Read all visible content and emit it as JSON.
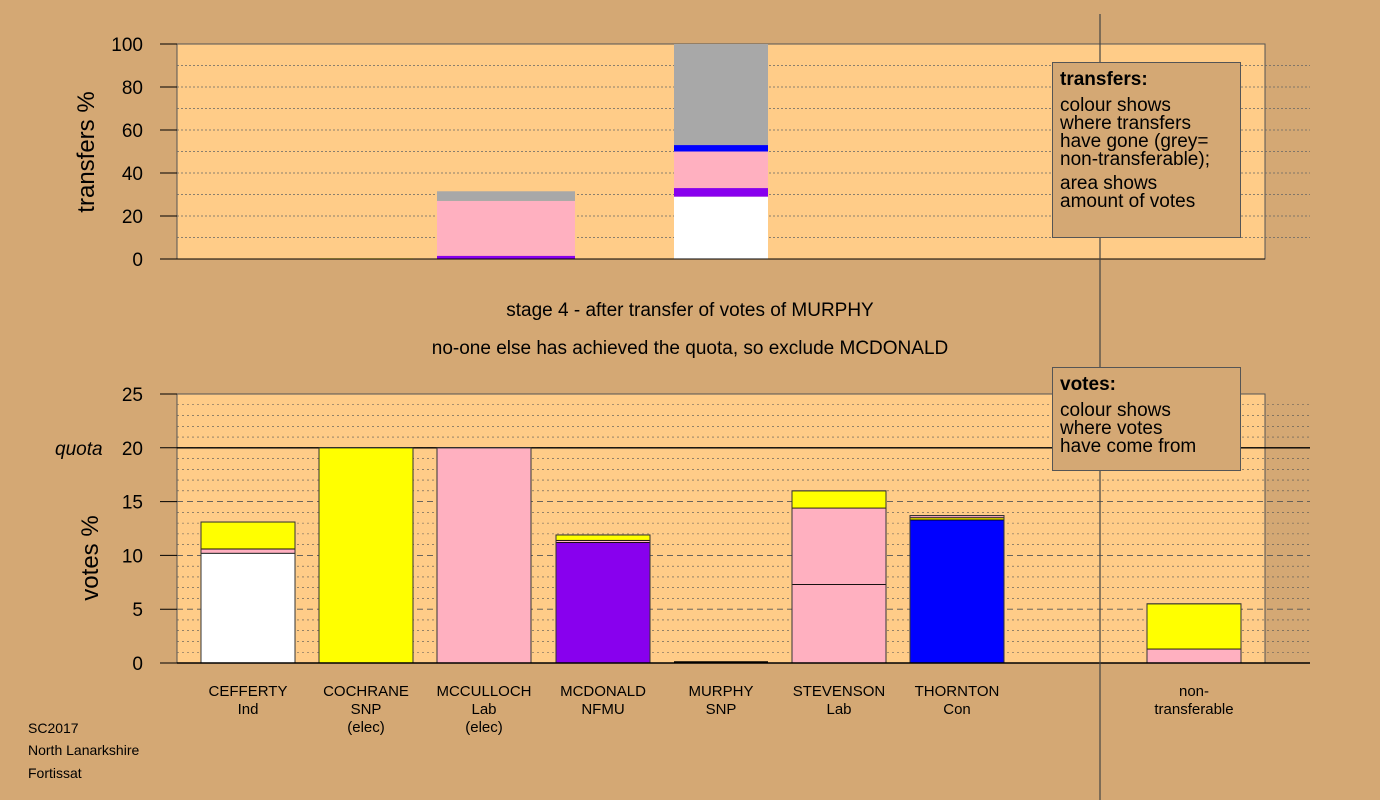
{
  "chart_data": [
    {
      "type": "bar",
      "stacked": true,
      "ylabel": "transfers %",
      "ylim": [
        0,
        100
      ],
      "yticks": [
        0,
        20,
        40,
        60,
        80,
        100
      ],
      "bars": [
        {
          "category": "CEFFERTY",
          "segments": []
        },
        {
          "category": "COCHRANE",
          "segments": [
            {
              "color": "#ffff00",
              "value": 0.3
            }
          ]
        },
        {
          "category": "MCCULLOCH",
          "segments": [
            {
              "color": "#8800ee",
              "value": 1.5
            },
            {
              "color": "#ffb0c0",
              "value": 25.5
            },
            {
              "color": "#a8a8a8",
              "value": 4.5
            }
          ]
        },
        {
          "category": "MCDONALD",
          "segments": []
        },
        {
          "category": "MURPHY",
          "segments": [
            {
              "color": "#ffffff",
              "value": 29
            },
            {
              "color": "#8800ee",
              "value": 4
            },
            {
              "color": "#ffb0c0",
              "value": 17
            },
            {
              "color": "#0000ff",
              "value": 3
            },
            {
              "color": "#a8a8a8",
              "value": 47
            }
          ]
        },
        {
          "category": "STEVENSON",
          "segments": []
        },
        {
          "category": "THORNTON",
          "segments": []
        }
      ]
    },
    {
      "type": "bar",
      "stacked": true,
      "ylabel": "votes %",
      "ylim": [
        0,
        25
      ],
      "yticks": [
        0,
        5,
        10,
        15,
        20,
        25
      ],
      "quota": 20,
      "quota_label": "quota",
      "bars": [
        {
          "category": "CEFFERTY",
          "segments": [
            {
              "color": "#ffffff",
              "value": 10.2
            },
            {
              "color": "#ffb0c0",
              "value": 0.4
            },
            {
              "color": "#ffff00",
              "value": 2.5
            }
          ]
        },
        {
          "category": "COCHRANE",
          "segments": [
            {
              "color": "#ffff00",
              "value": 20
            }
          ]
        },
        {
          "category": "MCCULLOCH",
          "segments": [
            {
              "color": "#ffb0c0",
              "value": 20
            }
          ]
        },
        {
          "category": "MCDONALD",
          "segments": [
            {
              "color": "#8800ee",
              "value": 11.2
            },
            {
              "color": "#ffb0c0",
              "value": 0.2
            },
            {
              "color": "#ffff00",
              "value": 0.5
            }
          ]
        },
        {
          "category": "MURPHY",
          "segments": []
        },
        {
          "category": "STEVENSON",
          "segments": [
            {
              "color": "#ffb0c0",
              "value": 7.3
            },
            {
              "color": "#ffb0c0",
              "value": 7.1
            },
            {
              "color": "#ffff00",
              "value": 1.6
            }
          ]
        },
        {
          "category": "THORNTON",
          "segments": [
            {
              "color": "#0000ff",
              "value": 13.3
            },
            {
              "color": "#ffff00",
              "value": 0.2
            },
            {
              "color": "#ffb0c0",
              "value": 0.2
            }
          ]
        },
        {
          "category": "non-transferable",
          "segments": [
            {
              "color": "#ffb0c0",
              "value": 1.3
            },
            {
              "color": "#ffff00",
              "value": 4.2
            }
          ]
        }
      ]
    }
  ],
  "candidates": [
    {
      "name": "CEFFERTY",
      "party": "Ind",
      "status": ""
    },
    {
      "name": "COCHRANE",
      "party": "SNP",
      "status": "(elec)"
    },
    {
      "name": "MCCULLOCH",
      "party": "Lab",
      "status": "(elec)"
    },
    {
      "name": "MCDONALD",
      "party": "NFMU",
      "status": ""
    },
    {
      "name": "MURPHY",
      "party": "SNP",
      "status": ""
    },
    {
      "name": "STEVENSON",
      "party": "Lab",
      "status": ""
    },
    {
      "name": "THORNTON",
      "party": "Con",
      "status": ""
    }
  ],
  "nontransferable_label": [
    "non-",
    "transferable"
  ],
  "stage_text": "stage 4 - after transfer of votes of MURPHY",
  "action_text": "no-one else has achieved the quota, so exclude MCDONALD",
  "transfers_legend": {
    "title": "transfers:",
    "lines1": [
      "colour shows",
      "where transfers",
      "have gone (grey=",
      "non-transferable);"
    ],
    "lines2": [
      "area shows",
      "amount of votes"
    ]
  },
  "votes_legend": {
    "title": "votes:",
    "lines": [
      "colour shows",
      "where votes",
      "have come from"
    ]
  },
  "footer": [
    "SC2017",
    "North Lanarkshire",
    "Fortissat"
  ],
  "colors": {
    "background": "#d4a874",
    "plot_background": "#ffcc88",
    "white": "#ffffff",
    "yellow": "#ffff00",
    "pink": "#ffb0c0",
    "purple": "#8800ee",
    "blue": "#0000ff",
    "grey": "#a8a8a8"
  }
}
